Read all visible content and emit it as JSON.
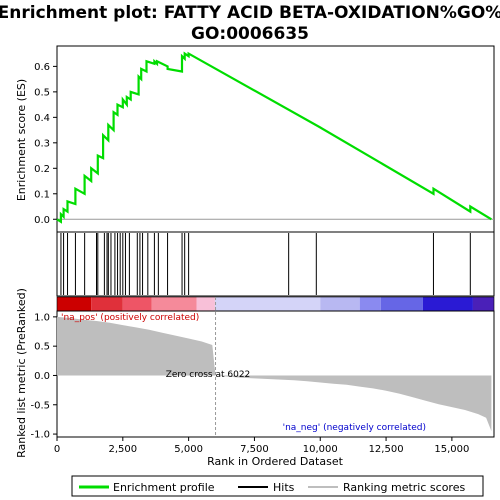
{
  "chart_data": {
    "type": "line",
    "title_line1": "Enrichment plot: FATTY ACID BETA-OXIDATION%GO%",
    "title_line2": "GO:0006635",
    "xlabel": "Rank in Ordered Dataset",
    "ylabel_top": "Enrichment score (ES)",
    "ylabel_bottom": "Ranked list metric (PreRanked)",
    "xlim": [
      0,
      16600
    ],
    "top_ylim": [
      -0.05,
      0.68
    ],
    "bottom_ylim": [
      -1.05,
      1.1
    ],
    "x_ticks": [
      0,
      2500,
      5000,
      7500,
      10000,
      12500,
      15000
    ],
    "x_tick_labels": [
      "0",
      "2,500",
      "5,000",
      "7,500",
      "10,000",
      "12,500",
      "15,000"
    ],
    "top_y_ticks": [
      0.0,
      0.1,
      0.2,
      0.3,
      0.4,
      0.5,
      0.6
    ],
    "top_y_tick_labels": [
      "0.0",
      "0.1",
      "0.2",
      "0.3",
      "0.4",
      "0.5",
      "0.6"
    ],
    "bottom_y_ticks": [
      1.0,
      0.5,
      0.0,
      -0.5,
      -1.0
    ],
    "bottom_y_tick_labels": [
      "1.0",
      "0.5",
      "0.0",
      "-0.5",
      "-1.0"
    ],
    "grid": false,
    "legend_position": "bottom",
    "series": [
      {
        "name": "Enrichment profile",
        "color": "#00dd00",
        "x": [
          0,
          150,
          150,
          250,
          250,
          400,
          400,
          700,
          700,
          1050,
          1050,
          1300,
          1300,
          1550,
          1550,
          1750,
          1750,
          1950,
          1950,
          2150,
          2150,
          2300,
          2300,
          2500,
          2500,
          2650,
          2650,
          2800,
          2800,
          3100,
          3100,
          3200,
          3200,
          3400,
          3400,
          3700,
          3700,
          3800,
          3800,
          4200,
          4200,
          4750,
          4750,
          4850,
          4850,
          5000,
          5000,
          10000,
          14300,
          14300,
          15700,
          15700,
          16500
        ],
        "y": [
          0.0,
          -0.01,
          0.02,
          0.01,
          0.04,
          0.03,
          0.07,
          0.06,
          0.12,
          0.1,
          0.17,
          0.15,
          0.2,
          0.18,
          0.25,
          0.24,
          0.33,
          0.31,
          0.37,
          0.35,
          0.42,
          0.41,
          0.45,
          0.44,
          0.47,
          0.45,
          0.48,
          0.47,
          0.5,
          0.49,
          0.56,
          0.55,
          0.59,
          0.58,
          0.62,
          0.61,
          0.62,
          0.61,
          0.62,
          0.6,
          0.59,
          0.58,
          0.64,
          0.63,
          0.65,
          0.64,
          0.65,
          0.36,
          0.1,
          0.12,
          0.03,
          0.05,
          0.0
        ]
      },
      {
        "name": "Hits",
        "color": "#000000",
        "positions": [
          150,
          250,
          400,
          700,
          1050,
          1500,
          1550,
          1800,
          1900,
          1950,
          2050,
          2200,
          2300,
          2400,
          2500,
          2600,
          2750,
          3050,
          3150,
          3250,
          3450,
          3700,
          3850,
          4200,
          4750,
          4850,
          5000,
          8800,
          9850,
          14300,
          15700
        ]
      },
      {
        "name": "Ranking metric scores",
        "color": "#bebebe",
        "x": [
          0,
          500,
          1000,
          1500,
          2000,
          2500,
          3000,
          3500,
          4000,
          4500,
          5000,
          5500,
          5900,
          6022,
          6500,
          7000,
          7500,
          8000,
          8500,
          9000,
          9500,
          10000,
          10500,
          11000,
          11500,
          12000,
          12500,
          13000,
          13500,
          14000,
          14500,
          15000,
          15500,
          16000,
          16300,
          16500
        ],
        "values": [
          1.0,
          0.98,
          0.95,
          0.93,
          0.9,
          0.86,
          0.82,
          0.78,
          0.73,
          0.68,
          0.63,
          0.58,
          0.52,
          0.0,
          -0.02,
          -0.04,
          -0.05,
          -0.06,
          -0.07,
          -0.08,
          -0.1,
          -0.12,
          -0.14,
          -0.16,
          -0.19,
          -0.22,
          -0.26,
          -0.31,
          -0.37,
          -0.43,
          -0.49,
          -0.54,
          -0.59,
          -0.66,
          -0.72,
          -0.95
        ]
      }
    ],
    "annotations": {
      "pos": "'na_pos' (positively correlated)",
      "neg": "'na_neg' (negatively correlated)",
      "zero_cross": "Zero cross at 6022",
      "zero_cross_x": 6022
    },
    "color_bar": [
      {
        "from": 0,
        "to": 1300,
        "color": "#cc0000"
      },
      {
        "from": 1300,
        "to": 2500,
        "color": "#e0303a"
      },
      {
        "from": 2500,
        "to": 3600,
        "color": "#ee5566"
      },
      {
        "from": 3600,
        "to": 5300,
        "color": "#f58a9a"
      },
      {
        "from": 5300,
        "to": 6000,
        "color": "#f8c0d8"
      },
      {
        "from": 6000,
        "to": 10000,
        "color": "#d4d4f8"
      },
      {
        "from": 10000,
        "to": 11500,
        "color": "#b8b8f2"
      },
      {
        "from": 11500,
        "to": 12300,
        "color": "#8a8af0"
      },
      {
        "from": 12300,
        "to": 13900,
        "color": "#6666e6"
      },
      {
        "from": 13900,
        "to": 15800,
        "color": "#2a1ad4"
      },
      {
        "from": 15800,
        "to": 16600,
        "color": "#4a20b8"
      }
    ],
    "legend": {
      "profile": "Enrichment profile",
      "hits": "Hits",
      "metric": "Ranking metric scores"
    }
  }
}
